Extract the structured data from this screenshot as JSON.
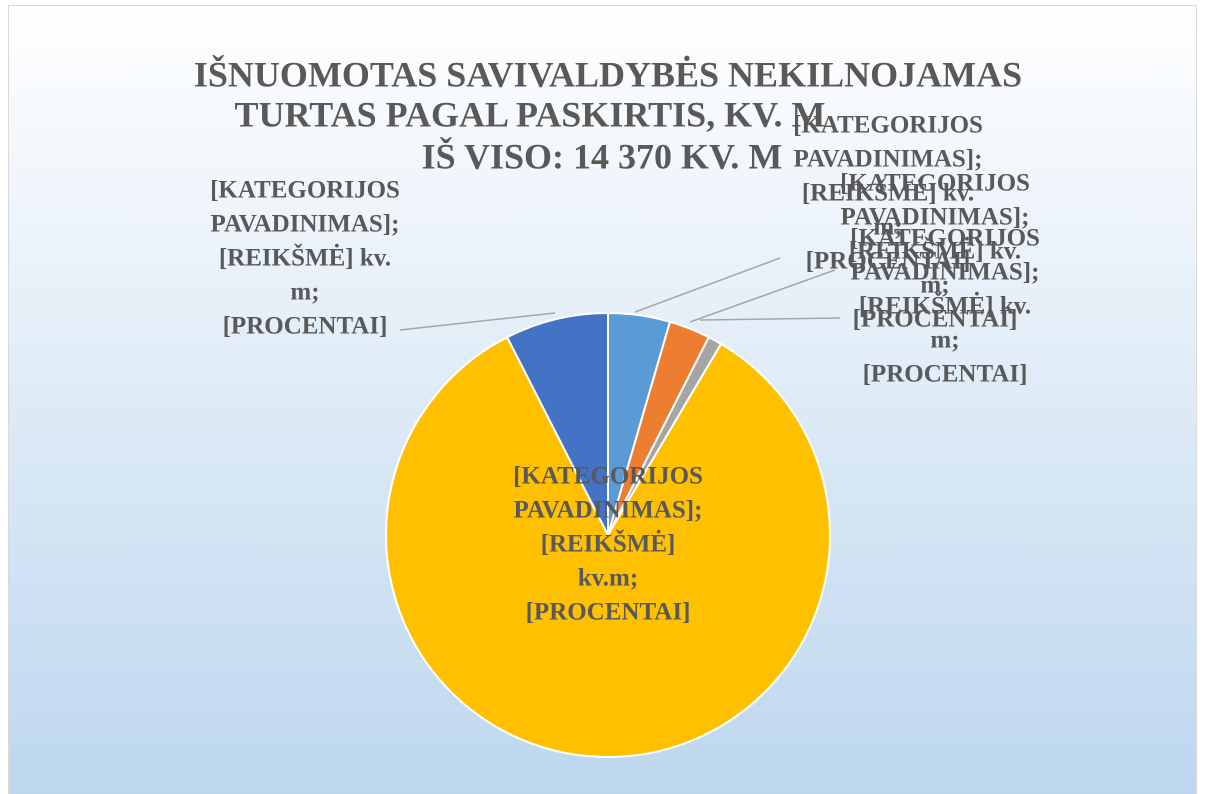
{
  "chart_data": {
    "type": "pie",
    "title": [
      "IŠNUOMOTAS SAVIVALDYBĖS NEKILNOJAMAS",
      "TURTAS PAGAL PASKIRTIS, KV. M"
    ],
    "subtitle": "IŠ VISO: 14 370 KV. M",
    "values": [
      647,
      431,
      144,
      12070,
      1078
    ],
    "colors": [
      "#5b9bd5",
      "#ed7d31",
      "#a5a5a5",
      "#ffc000",
      "#4472c4"
    ],
    "value_labels": [
      [
        "[KATEGORIJOS",
        "PAVADINIMAS];",
        "[REIKŠMĖ] kv.",
        "m;",
        "[PROCENTAI]"
      ],
      [
        "[KATEGORIJOS",
        "PAVADINIMAS];",
        "[REIKŠMĖ] kv.",
        "m;",
        "[PROCENTAI]"
      ],
      [
        "[KATEGORIJOS",
        "PAVADINIMAS];",
        "[REIKŠMĖ] kv.",
        "m;",
        "[PROCENTAI]"
      ],
      [
        "[KATEGORIJOS",
        "PAVADINIMAS];",
        "[REIKŠMĖ]",
        "kv.m;",
        "[PROCENTAI]"
      ],
      [
        "[KATEGORIJOS",
        "PAVADINIMAS];",
        "[REIKŠMĖ] kv.",
        "m;",
        "[PROCENTAI]"
      ]
    ]
  }
}
